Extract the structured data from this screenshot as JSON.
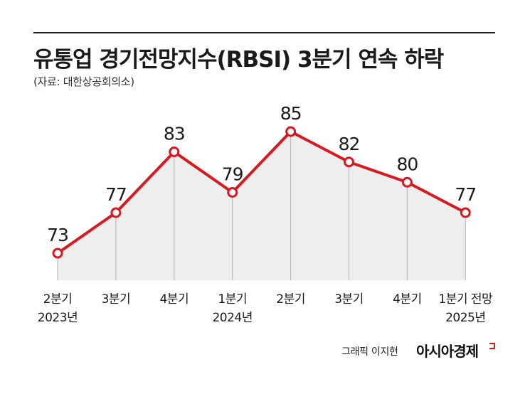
{
  "header": {
    "title": "유통업 경기전망지수(RBSI) 3분기 연속 하락",
    "source": "(자료: 대한상공회의소)"
  },
  "footer": {
    "credit": "그래픽 이지현",
    "brand": "아시아경제"
  },
  "colors": {
    "line": "#d71920",
    "area": "#eeeeee",
    "marker_fill": "#ffffff"
  },
  "chart_data": {
    "type": "line",
    "title": "유통업 경기전망지수(RBSI) 3분기 연속 하락",
    "categories": [
      [
        "2분기",
        "2023년"
      ],
      [
        "3분기",
        ""
      ],
      [
        "4분기",
        ""
      ],
      [
        "1분기",
        "2024년"
      ],
      [
        "2분기",
        ""
      ],
      [
        "3분기",
        ""
      ],
      [
        "4분기",
        ""
      ],
      [
        "1분기 전망",
        "2025년"
      ]
    ],
    "series": [
      {
        "values": [
          73,
          77,
          83,
          79,
          85,
          82,
          80,
          77
        ]
      }
    ],
    "data_labels": [
      "73",
      "77",
      "83",
      "79",
      "85",
      "82",
      "80",
      "77"
    ],
    "fill": "area-under-line",
    "grid": false,
    "legend": "none"
  }
}
